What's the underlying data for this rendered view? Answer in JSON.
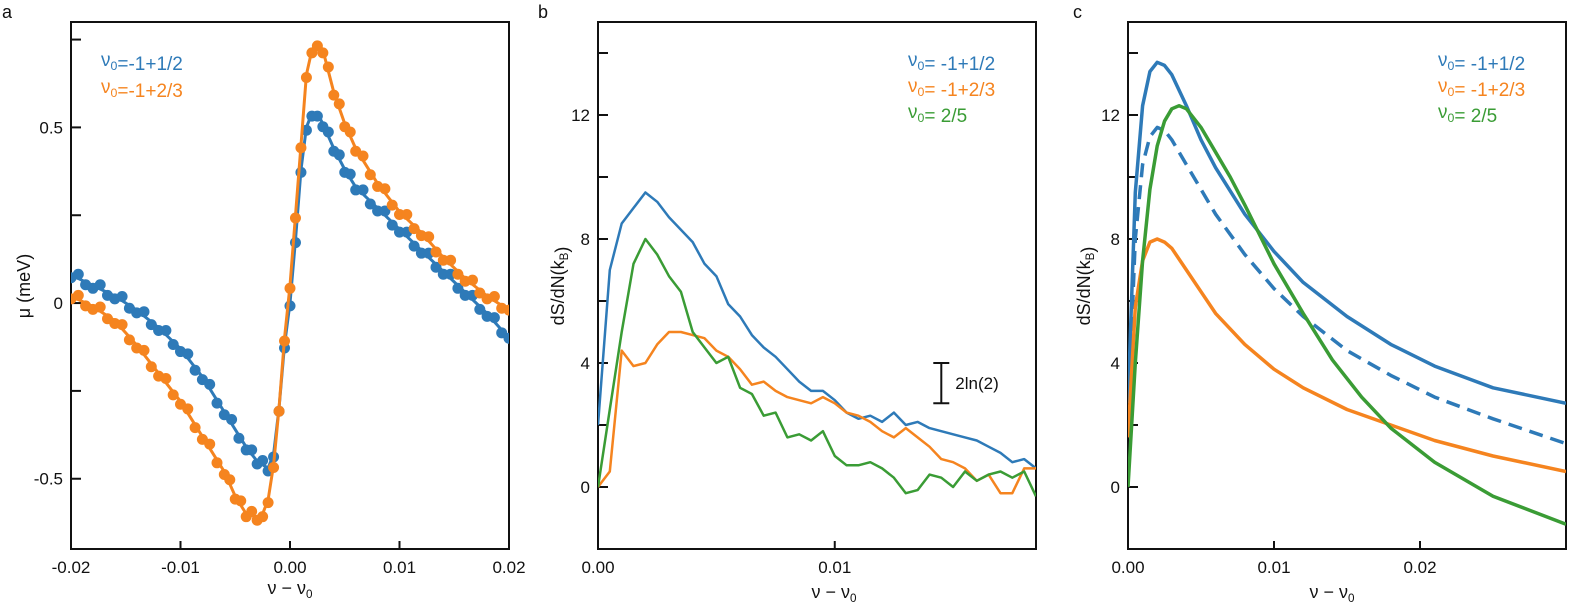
{
  "colors": {
    "blue": "#2e7ab8",
    "orange": "#f5841f",
    "green": "#3a9c35"
  },
  "chart_data": [
    {
      "panel": "a",
      "type": "scatter",
      "xlabel": "ν − ν0",
      "ylabel": "μ (meV)",
      "xlim": [
        -0.02,
        0.02
      ],
      "ylim": [
        -0.7,
        0.8
      ],
      "xticks": [
        -0.02,
        -0.01,
        0.0,
        0.01,
        0.02
      ],
      "xtick_labels": [
        "-0.02",
        "-0.01",
        "0.00",
        "0.01",
        "0.02"
      ],
      "yticks": [
        -0.5,
        0,
        0.5
      ],
      "ytick_labels": [
        "-0.5",
        "0",
        "0.5"
      ],
      "legend": {
        "placement": "top-left",
        "entries": [
          "ν0=-1+1/2",
          "ν0=-1+2/3"
        ]
      },
      "series": [
        {
          "name": "ν0=-1+1/2",
          "color": "blue",
          "style": "markers+fit",
          "points": [
            [
              -0.02,
              0.08
            ],
            [
              -0.018,
              0.05
            ],
            [
              -0.016,
              0.02
            ],
            [
              -0.014,
              -0.02
            ],
            [
              -0.012,
              -0.07
            ],
            [
              -0.01,
              -0.13
            ],
            [
              -0.008,
              -0.21
            ],
            [
              -0.006,
              -0.31
            ],
            [
              -0.004,
              -0.41
            ],
            [
              -0.003,
              -0.45
            ],
            [
              -0.002,
              -0.47
            ],
            [
              -0.0015,
              -0.43
            ],
            [
              -0.001,
              -0.3
            ],
            [
              -0.0005,
              -0.12
            ],
            [
              0.0,
              0.0
            ],
            [
              0.0005,
              0.18
            ],
            [
              0.001,
              0.38
            ],
            [
              0.0015,
              0.5
            ],
            [
              0.002,
              0.54
            ],
            [
              0.0025,
              0.54
            ],
            [
              0.003,
              0.51
            ],
            [
              0.004,
              0.44
            ],
            [
              0.005,
              0.38
            ],
            [
              0.006,
              0.33
            ],
            [
              0.008,
              0.27
            ],
            [
              0.01,
              0.21
            ],
            [
              0.012,
              0.15
            ],
            [
              0.014,
              0.09
            ],
            [
              0.016,
              0.03
            ],
            [
              0.018,
              -0.03
            ],
            [
              0.02,
              -0.1
            ]
          ]
        },
        {
          "name": "ν0=-1+2/3",
          "color": "orange",
          "style": "markers+fit",
          "points": [
            [
              -0.02,
              0.02
            ],
            [
              -0.018,
              -0.01
            ],
            [
              -0.016,
              -0.05
            ],
            [
              -0.014,
              -0.12
            ],
            [
              -0.012,
              -0.2
            ],
            [
              -0.01,
              -0.28
            ],
            [
              -0.008,
              -0.38
            ],
            [
              -0.006,
              -0.48
            ],
            [
              -0.005,
              -0.55
            ],
            [
              -0.004,
              -0.6
            ],
            [
              -0.003,
              -0.61
            ],
            [
              -0.0025,
              -0.6
            ],
            [
              -0.002,
              -0.56
            ],
            [
              -0.0015,
              -0.46
            ],
            [
              -0.001,
              -0.3
            ],
            [
              -0.0005,
              -0.1
            ],
            [
              0.0,
              0.05
            ],
            [
              0.0005,
              0.25
            ],
            [
              0.001,
              0.45
            ],
            [
              0.0015,
              0.65
            ],
            [
              0.002,
              0.72
            ],
            [
              0.0025,
              0.74
            ],
            [
              0.003,
              0.72
            ],
            [
              0.004,
              0.6
            ],
            [
              0.005,
              0.51
            ],
            [
              0.006,
              0.44
            ],
            [
              0.008,
              0.34
            ],
            [
              0.01,
              0.26
            ],
            [
              0.012,
              0.2
            ],
            [
              0.014,
              0.13
            ],
            [
              0.016,
              0.07
            ],
            [
              0.018,
              0.02
            ],
            [
              0.02,
              -0.02
            ]
          ]
        }
      ]
    },
    {
      "panel": "b",
      "type": "line",
      "xlabel": "ν − ν0",
      "ylabel": "dS/dN(kB)",
      "xlim": [
        0,
        0.0185
      ],
      "ylim": [
        -2,
        15
      ],
      "xticks": [
        0,
        0.01
      ],
      "xtick_labels": [
        "0.00",
        "0.01"
      ],
      "yticks": [
        0,
        4,
        8,
        12
      ],
      "ytick_labels": [
        "0",
        "4",
        "8",
        "12"
      ],
      "annotation": {
        "text": "2ln(2)",
        "y_from": 2.7,
        "y_to": 4.0,
        "x": 0.0145
      },
      "legend": {
        "placement": "top-right",
        "entries": [
          "ν0= -1+1/2",
          "ν0= -1+2/3",
          "ν0= 2/5"
        ]
      },
      "series": [
        {
          "name": "ν0= -1+1/2",
          "color": "blue",
          "x": [
            0,
            0.0005,
            0.001,
            0.0015,
            0.002,
            0.0025,
            0.003,
            0.0035,
            0.004,
            0.0045,
            0.005,
            0.0055,
            0.006,
            0.0065,
            0.007,
            0.0075,
            0.008,
            0.0085,
            0.009,
            0.0095,
            0.01,
            0.0105,
            0.011,
            0.0115,
            0.012,
            0.0125,
            0.013,
            0.0135,
            0.014,
            0.0145,
            0.015,
            0.0155,
            0.016,
            0.0165,
            0.017,
            0.0175,
            0.018,
            0.0185
          ],
          "y": [
            2.0,
            7.0,
            8.5,
            9.0,
            9.5,
            9.2,
            8.7,
            8.3,
            7.9,
            7.2,
            6.8,
            5.9,
            5.5,
            4.9,
            4.5,
            4.2,
            3.8,
            3.4,
            3.1,
            3.1,
            2.8,
            2.4,
            2.2,
            2.3,
            2.1,
            2.4,
            2.0,
            2.1,
            1.9,
            1.8,
            1.7,
            1.6,
            1.5,
            1.3,
            1.1,
            0.8,
            0.9,
            0.6
          ]
        },
        {
          "name": "ν0= -1+2/3",
          "color": "orange",
          "x": [
            0,
            0.0005,
            0.001,
            0.0015,
            0.002,
            0.0025,
            0.003,
            0.0035,
            0.004,
            0.0045,
            0.005,
            0.0055,
            0.006,
            0.0065,
            0.007,
            0.0075,
            0.008,
            0.0085,
            0.009,
            0.0095,
            0.01,
            0.0105,
            0.011,
            0.0115,
            0.012,
            0.0125,
            0.013,
            0.0135,
            0.014,
            0.0145,
            0.015,
            0.0155,
            0.016,
            0.0165,
            0.017,
            0.0175,
            0.018,
            0.0185
          ],
          "y": [
            0.0,
            0.5,
            4.4,
            3.9,
            4.0,
            4.6,
            5.0,
            5.0,
            4.9,
            4.8,
            4.4,
            4.2,
            3.8,
            3.3,
            3.4,
            3.1,
            2.9,
            2.8,
            2.7,
            2.9,
            2.7,
            2.4,
            2.3,
            2.1,
            1.8,
            1.6,
            1.9,
            1.6,
            1.3,
            0.9,
            0.8,
            0.6,
            0.2,
            0.4,
            -0.2,
            -0.2,
            0.6,
            0.6
          ]
        },
        {
          "name": "ν0= 2/5",
          "color": "green",
          "x": [
            0,
            0.0005,
            0.001,
            0.0015,
            0.002,
            0.0025,
            0.003,
            0.0035,
            0.004,
            0.0045,
            0.005,
            0.0055,
            0.006,
            0.0065,
            0.007,
            0.0075,
            0.008,
            0.0085,
            0.009,
            0.0095,
            0.01,
            0.0105,
            0.011,
            0.0115,
            0.012,
            0.0125,
            0.013,
            0.0135,
            0.014,
            0.0145,
            0.015,
            0.0155,
            0.016,
            0.0165,
            0.017,
            0.0175,
            0.018,
            0.0185
          ],
          "y": [
            0.0,
            2.5,
            5.0,
            7.2,
            8.0,
            7.5,
            6.8,
            6.3,
            5.0,
            4.5,
            4.0,
            4.2,
            3.2,
            3.0,
            2.3,
            2.4,
            1.6,
            1.7,
            1.5,
            1.8,
            1.0,
            0.7,
            0.7,
            0.8,
            0.6,
            0.3,
            -0.2,
            -0.1,
            0.4,
            0.3,
            0.0,
            0.5,
            0.2,
            0.4,
            0.5,
            0.3,
            0.5,
            -0.3
          ]
        }
      ]
    },
    {
      "panel": "c",
      "type": "line",
      "xlabel": "ν − ν0",
      "ylabel": "dS/dN(kB)",
      "xlim": [
        0,
        0.03
      ],
      "ylim": [
        -2,
        15
      ],
      "xticks": [
        0,
        0.01,
        0.02
      ],
      "xtick_labels": [
        "0.00",
        "0.01",
        "0.02"
      ],
      "yticks": [
        0,
        4,
        8,
        12
      ],
      "ytick_labels": [
        "0",
        "4",
        "8",
        "12"
      ],
      "legend": {
        "placement": "top-right",
        "entries": [
          "ν0= -1+1/2",
          "ν0= -1+2/3",
          "ν0= 2/5"
        ]
      },
      "series": [
        {
          "name": "ν0= -1+1/2",
          "color": "blue",
          "dash": false,
          "x": [
            0,
            0.0005,
            0.001,
            0.0015,
            0.002,
            0.0025,
            0.003,
            0.004,
            0.005,
            0.006,
            0.008,
            0.01,
            0.012,
            0.015,
            0.018,
            0.021,
            0.025,
            0.03
          ],
          "y": [
            2.7,
            9.5,
            12.3,
            13.4,
            13.7,
            13.6,
            13.3,
            12.3,
            11.2,
            10.3,
            8.8,
            7.6,
            6.6,
            5.5,
            4.6,
            3.9,
            3.2,
            2.7
          ]
        },
        {
          "color": "blue",
          "dash": true,
          "x": [
            0,
            0.0005,
            0.001,
            0.0015,
            0.002,
            0.0025,
            0.003,
            0.004,
            0.005,
            0.006,
            0.008,
            0.01,
            0.012,
            0.015,
            0.018,
            0.021,
            0.025,
            0.03
          ],
          "y": [
            2.2,
            8.0,
            10.4,
            11.3,
            11.6,
            11.5,
            11.2,
            10.4,
            9.6,
            8.8,
            7.5,
            6.4,
            5.5,
            4.4,
            3.6,
            2.9,
            2.2,
            1.4
          ]
        },
        {
          "name": "ν0= -1+2/3",
          "color": "orange",
          "dash": false,
          "x": [
            0,
            0.0005,
            0.001,
            0.0015,
            0.002,
            0.0025,
            0.003,
            0.004,
            0.005,
            0.006,
            0.008,
            0.01,
            0.012,
            0.015,
            0.018,
            0.021,
            0.025,
            0.03
          ],
          "y": [
            1.6,
            5.8,
            7.3,
            7.9,
            8.0,
            7.9,
            7.7,
            7.0,
            6.3,
            5.6,
            4.6,
            3.8,
            3.2,
            2.5,
            2.0,
            1.5,
            1.0,
            0.5
          ]
        },
        {
          "name": "ν0= 2/5",
          "color": "green",
          "dash": false,
          "x": [
            0,
            0.0005,
            0.001,
            0.0015,
            0.002,
            0.0025,
            0.003,
            0.0035,
            0.004,
            0.005,
            0.006,
            0.007,
            0.008,
            0.01,
            0.012,
            0.014,
            0.016,
            0.018,
            0.021,
            0.025,
            0.03
          ],
          "y": [
            0.0,
            4.0,
            7.3,
            9.6,
            11.0,
            11.8,
            12.2,
            12.3,
            12.2,
            11.6,
            10.8,
            10.0,
            9.1,
            7.2,
            5.6,
            4.1,
            2.9,
            1.9,
            0.8,
            -0.3,
            -1.2
          ]
        }
      ]
    }
  ]
}
